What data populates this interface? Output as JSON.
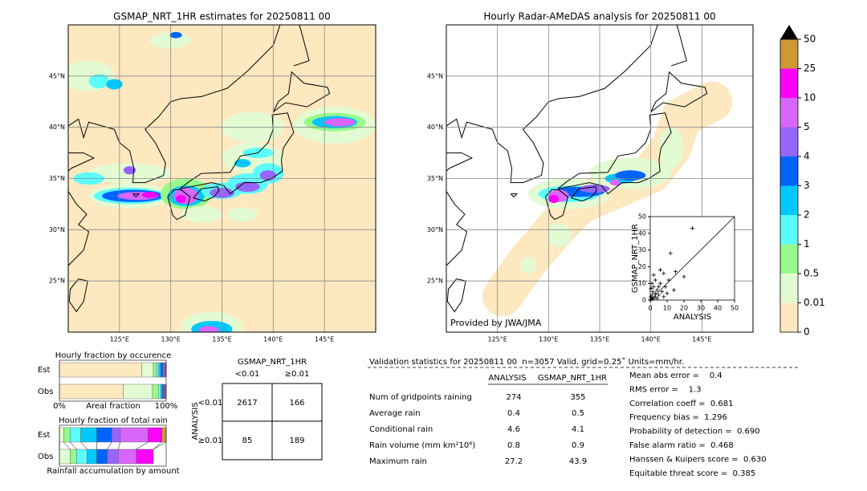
{
  "chart_data": [
    {
      "type": "map",
      "title": "GSMAP_NRT_1HR estimates for 20250811 00",
      "xlim": [
        120,
        150
      ],
      "ylim": [
        20,
        50
      ],
      "xticks": [
        {
          "value": 125,
          "label": "125°E"
        },
        {
          "value": 130,
          "label": "130°E"
        },
        {
          "value": 135,
          "label": "135°E"
        },
        {
          "value": 140,
          "label": "140°E"
        },
        {
          "value": 145,
          "label": "145°E"
        }
      ],
      "yticks": [
        {
          "value": 25,
          "label": "25°N"
        },
        {
          "value": 30,
          "label": "30°N"
        },
        {
          "value": 35,
          "label": "35°N"
        },
        {
          "value": 40,
          "label": "40°N"
        },
        {
          "value": 45,
          "label": "45°N"
        }
      ],
      "grid": true
    },
    {
      "type": "map",
      "title": "Hourly Radar-AMeDAS analysis for 20250811 00",
      "annotation": "Provided by JWA/JMA",
      "xlim": [
        120,
        150
      ],
      "ylim": [
        20,
        50
      ],
      "xticks": [
        {
          "value": 125,
          "label": "125°E"
        },
        {
          "value": 130,
          "label": "130°E"
        },
        {
          "value": 135,
          "label": "135°E"
        },
        {
          "value": 140,
          "label": "140°E"
        },
        {
          "value": 145,
          "label": "145°E"
        }
      ],
      "yticks": [
        {
          "value": 25,
          "label": "25°N"
        },
        {
          "value": 30,
          "label": "30°N"
        },
        {
          "value": 35,
          "label": "35°N"
        },
        {
          "value": 40,
          "label": "40°N"
        },
        {
          "value": 45,
          "label": "45°N"
        }
      ],
      "grid": true
    },
    {
      "type": "colorbar",
      "ticks": [
        0,
        0.01,
        0.5,
        1,
        2,
        3,
        4,
        5,
        10,
        25,
        50
      ],
      "colors": [
        "#fde8c0",
        "#e3fbd3",
        "#96fa8c",
        "#5cfcfc",
        "#00c8fc",
        "#0064fc",
        "#9666fc",
        "#d966fc",
        "#fc00fc",
        "#cc9933"
      ],
      "extend_color": "#000000"
    },
    {
      "type": "scatter",
      "xlabel": "ANALYSIS",
      "ylabel": "GSMAP_NRT_1HR",
      "xlim": [
        0,
        50
      ],
      "ylim": [
        0,
        50
      ],
      "xticks": [
        0,
        10,
        20,
        30,
        40,
        50
      ],
      "yticks": [
        0,
        10,
        20,
        30,
        40,
        50
      ],
      "x": [
        0.5,
        1,
        2,
        1.5,
        3,
        4,
        2,
        5,
        6,
        3,
        7,
        8,
        10,
        12,
        15,
        20,
        25,
        1,
        0.3,
        4,
        9,
        11,
        2,
        6,
        0.5,
        14,
        3,
        5,
        8,
        1
      ],
      "y": [
        1,
        3,
        1,
        5,
        2,
        6,
        8,
        3,
        10,
        12,
        5,
        16,
        4,
        28,
        17,
        14,
        43,
        0.5,
        2,
        1,
        8,
        12,
        15,
        18,
        7,
        6,
        4,
        8,
        2,
        10
      ],
      "color": "#000000",
      "diagonal": true
    },
    {
      "type": "stacked-bar",
      "title": "Hourly fraction by occurence",
      "xlabel": "Areal fraction",
      "categories": [
        "Est",
        "Obs"
      ],
      "xlim": [
        0,
        100
      ],
      "xticks": [
        {
          "value": 0,
          "label": "0%"
        },
        {
          "value": 100,
          "label": "100%"
        }
      ],
      "series": [
        {
          "color": "#fde8c0",
          "values": [
            77,
            60
          ]
        },
        {
          "color": "#e3fbd3",
          "values": [
            11,
            27
          ]
        },
        {
          "color": "#96fa8c",
          "values": [
            3,
            6
          ]
        },
        {
          "color": "#5cfcfc",
          "values": [
            2,
            2
          ]
        },
        {
          "color": "#00c8fc",
          "values": [
            2,
            1.5
          ]
        },
        {
          "color": "#0064fc",
          "values": [
            2,
            1.5
          ]
        },
        {
          "color": "#9666fc",
          "values": [
            1,
            0.8
          ]
        },
        {
          "color": "#d966fc",
          "values": [
            1,
            0.8
          ]
        },
        {
          "color": "#fc00fc",
          "values": [
            0.7,
            0.3
          ]
        },
        {
          "color": "#cc9933",
          "values": [
            0.3,
            0.1
          ]
        }
      ]
    },
    {
      "type": "stacked-bar",
      "title": "Hourly fraction of total rain",
      "xlabel": "Rainfall accumulation by amount",
      "categories": [
        "Est",
        "Obs"
      ],
      "xlim": [
        0,
        100
      ],
      "connectors": true,
      "series": [
        {
          "color": "#fde8c0",
          "values": [
            0,
            0
          ]
        },
        {
          "color": "#e3fbd3",
          "values": [
            4,
            10
          ]
        },
        {
          "color": "#96fa8c",
          "values": [
            6,
            6
          ]
        },
        {
          "color": "#5cfcfc",
          "values": [
            10,
            10
          ]
        },
        {
          "color": "#00c8fc",
          "values": [
            15,
            9
          ]
        },
        {
          "color": "#0064fc",
          "values": [
            14,
            10
          ]
        },
        {
          "color": "#9666fc",
          "values": [
            8,
            10
          ]
        },
        {
          "color": "#d966fc",
          "values": [
            26,
            17
          ]
        },
        {
          "color": "#fc00fc",
          "values": [
            13,
            16
          ]
        },
        {
          "color": "#cc9933",
          "values": [
            4,
            0
          ]
        }
      ]
    }
  ],
  "contingency": {
    "title": "GSMAP_NRT_1HR",
    "columns": [
      "<0.01",
      "≥0.01"
    ],
    "row_title": "ANALYSIS",
    "rows": [
      "<0.01",
      "≥0.01"
    ],
    "cells": [
      [
        2617,
        166
      ],
      [
        85,
        189
      ]
    ]
  },
  "validation": {
    "title": "Validation statistics for 20250811 00  n=3057 Valid. grid=0.25˚ Units=mm/hr.",
    "columns": [
      "ANALYSIS",
      "GSMAP_NRT_1HR"
    ],
    "rows": [
      {
        "label": "Num of gridpoints raining",
        "values": [
          274,
          355
        ]
      },
      {
        "label": "Average rain",
        "values": [
          0.4,
          0.5
        ]
      },
      {
        "label": "Conditional rain",
        "values": [
          4.6,
          4.1
        ]
      },
      {
        "label": "Rain volume (mm km²10⁶)",
        "values": [
          0.8,
          0.9
        ]
      },
      {
        "label": "Maximum rain",
        "values": [
          27.2,
          43.9
        ]
      }
    ],
    "scores": [
      "Mean abs error =    0.4",
      "RMS error =    1.3",
      "Correlation coeff =  0.681",
      "Frequency bias =  1.296",
      "Probability of detection =  0.690",
      "False alarm ratio =  0.468",
      "Hanssen & Kuipers score =  0.630",
      "Equitable threat score =  0.385"
    ]
  }
}
